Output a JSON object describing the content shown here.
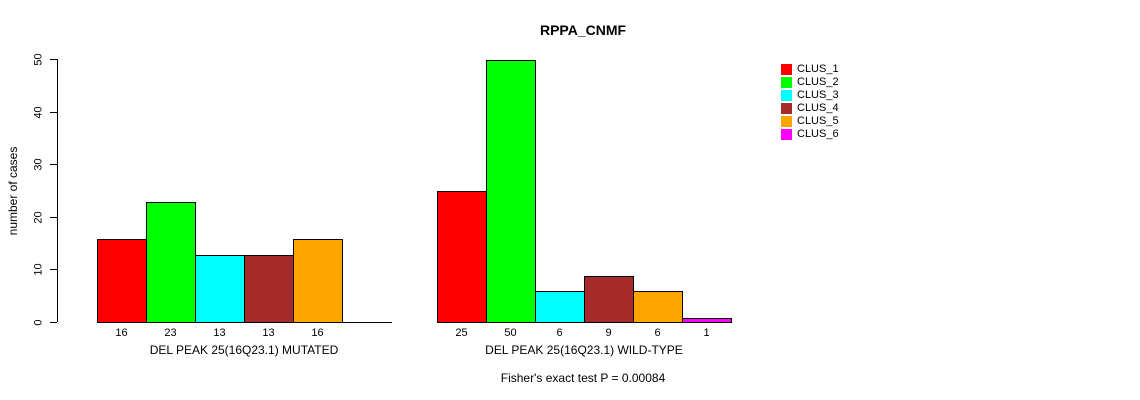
{
  "figure": {
    "title": "RPPA_CNMF",
    "footnote": "Fisher's exact test P = 0.00084"
  },
  "chart_data": {
    "type": "bar",
    "title": "RPPA_CNMF",
    "ylabel": "number of cases",
    "xlabel": "",
    "ylim": [
      0,
      50
    ],
    "yticks": [
      0,
      10,
      20,
      30,
      40,
      50
    ],
    "grid": false,
    "legend_position": "right",
    "legend": [
      {
        "label": "CLUS_1",
        "color": "#FF0000"
      },
      {
        "label": "CLUS_2",
        "color": "#00FF00"
      },
      {
        "label": "CLUS_3",
        "color": "#00FFFF"
      },
      {
        "label": "CLUS_4",
        "color": "#A52A2A"
      },
      {
        "label": "CLUS_5",
        "color": "#FFA500"
      },
      {
        "label": "CLUS_6",
        "color": "#FF00FF"
      }
    ],
    "categories": [
      "CLUS_1",
      "CLUS_2",
      "CLUS_3",
      "CLUS_4",
      "CLUS_5",
      "CLUS_6"
    ],
    "groups": [
      {
        "xlabel": "DEL PEAK 25(16Q23.1) MUTATED",
        "values": [
          16,
          23,
          13,
          13,
          16,
          0
        ],
        "bar_labels": [
          "16",
          "23",
          "13",
          "13",
          "16",
          ""
        ]
      },
      {
        "xlabel": "DEL PEAK 25(16Q23.1) WILD-TYPE",
        "values": [
          25,
          50,
          6,
          9,
          6,
          1
        ],
        "bar_labels": [
          "25",
          "50",
          "6",
          "9",
          "6",
          "1"
        ]
      }
    ],
    "footnote": "Fisher's exact test P = 0.00084"
  }
}
